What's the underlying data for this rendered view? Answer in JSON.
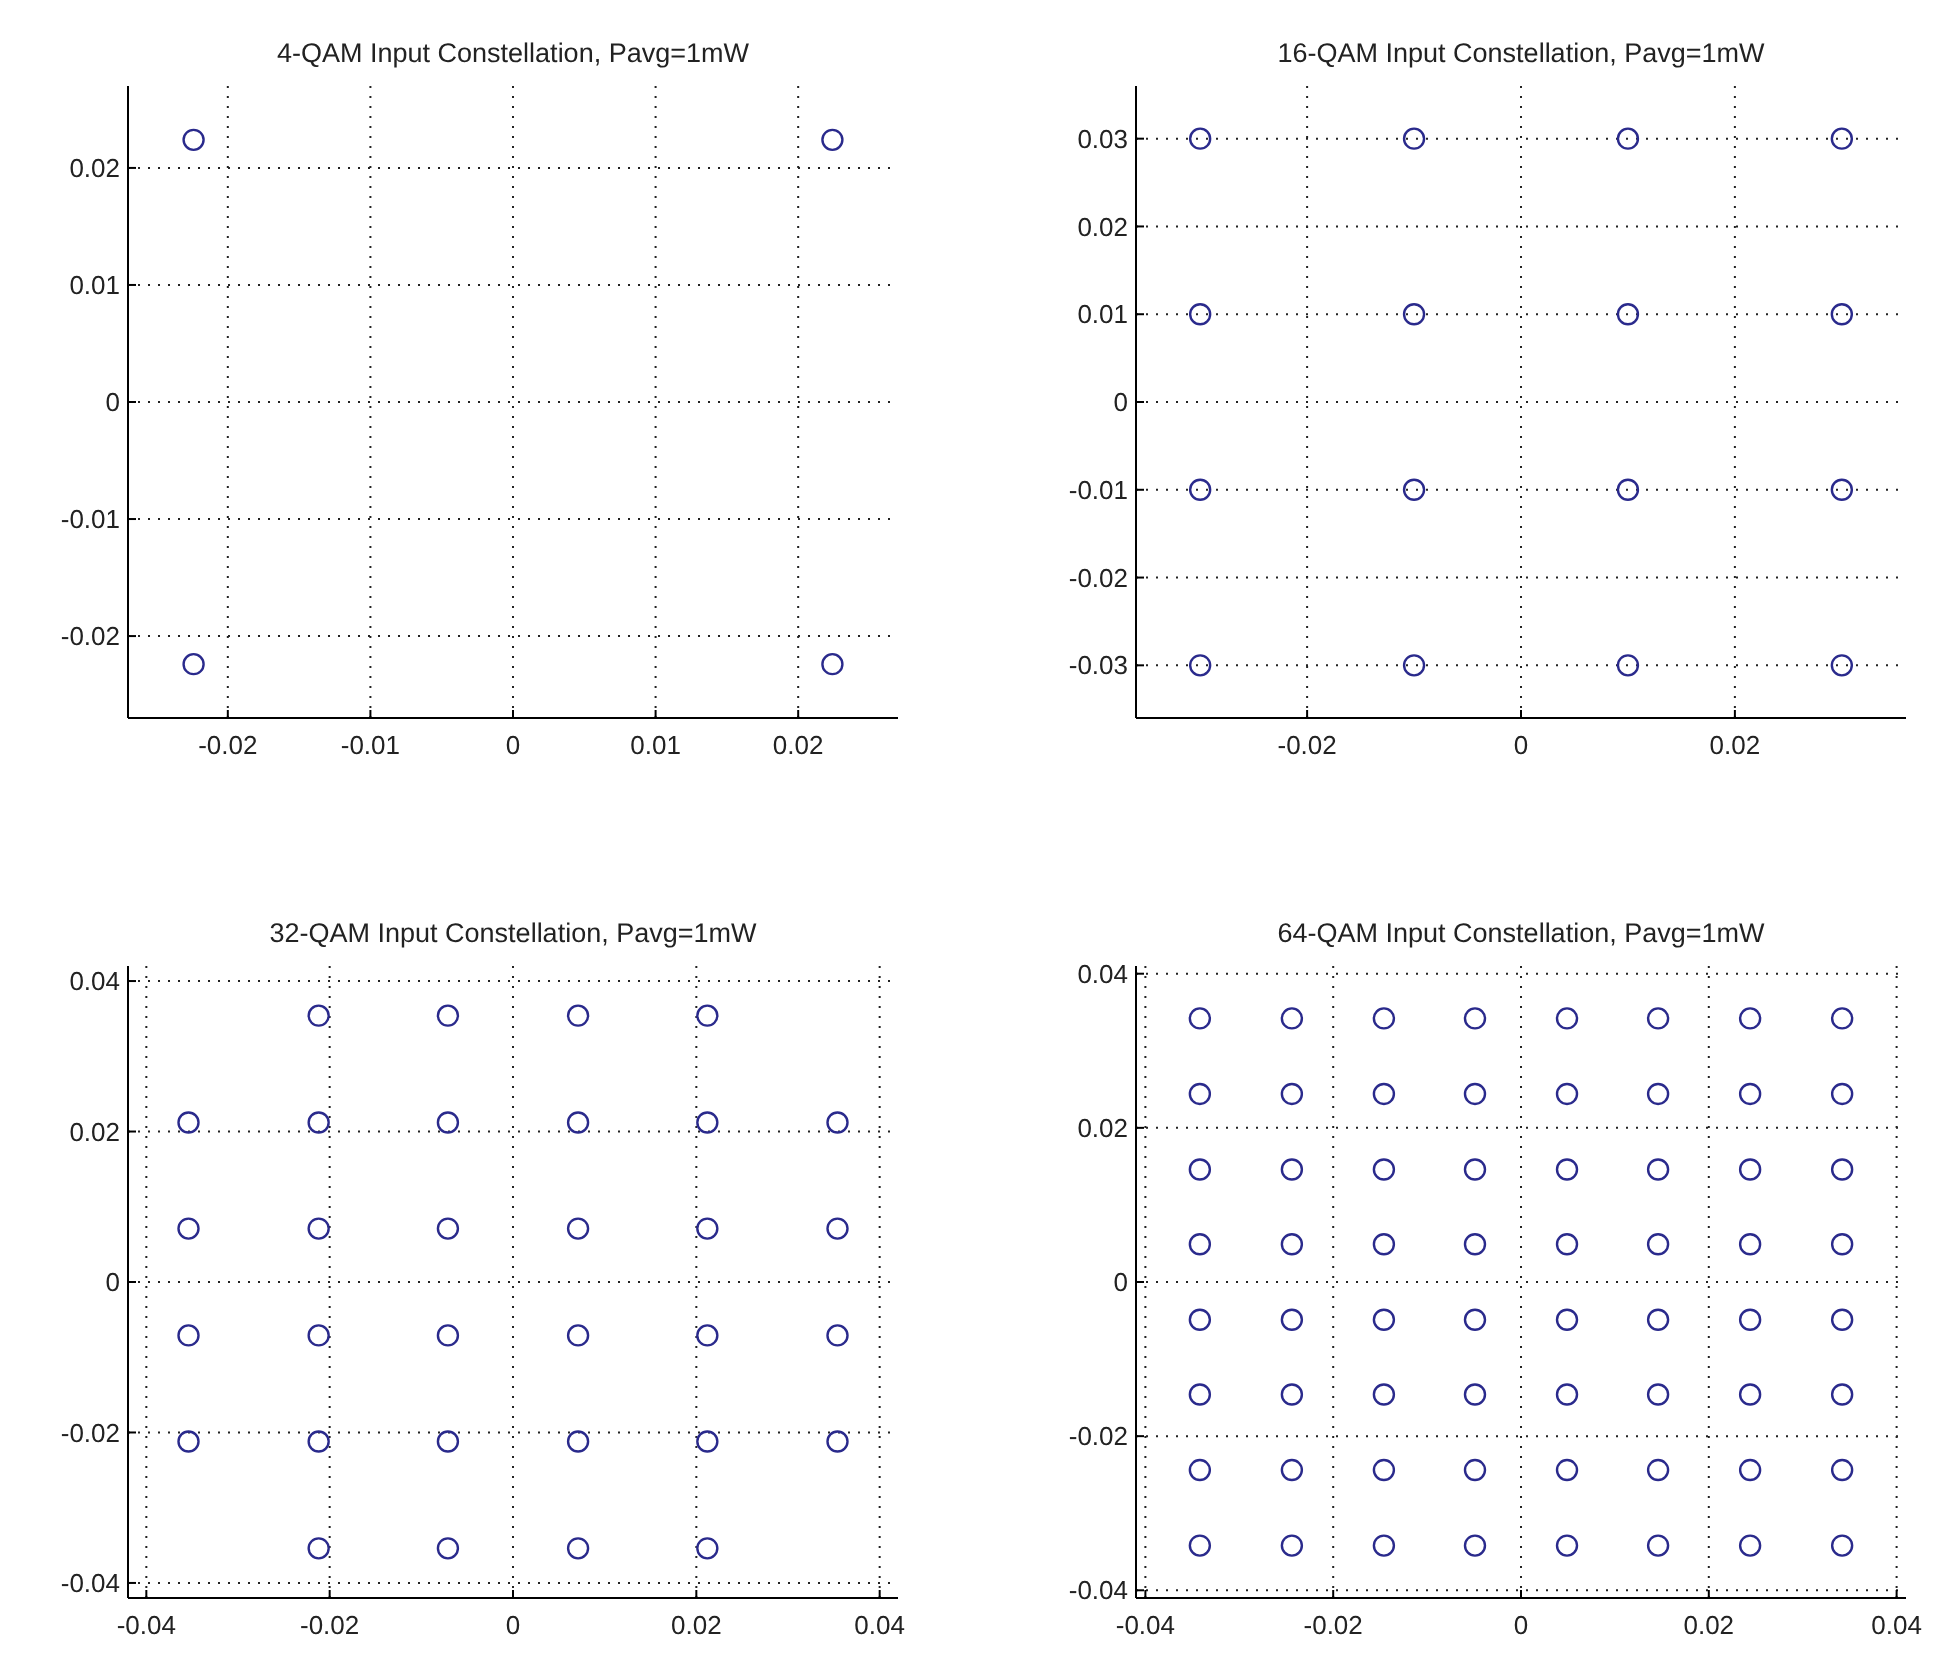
{
  "chart_data": [
    {
      "type": "scatter",
      "title": "4-QAM Input Constellation, Pavg=1mW",
      "xlim": [
        -0.027,
        0.027
      ],
      "ylim": [
        -0.027,
        0.027
      ],
      "xticks": [
        -0.02,
        -0.01,
        0,
        0.01,
        0.02
      ],
      "yticks": [
        -0.02,
        -0.01,
        0,
        0.01,
        0.02
      ],
      "grid": true,
      "marker": "circle",
      "series": [
        {
          "color": "#2a2a8c",
          "x": [
            -0.0224,
            0.0224,
            -0.0224,
            0.0224
          ],
          "values": [
            0.0224,
            0.0224,
            -0.0224,
            -0.0224
          ]
        }
      ]
    },
    {
      "type": "scatter",
      "title": "16-QAM Input Constellation, Pavg=1mW",
      "xlim": [
        -0.036,
        0.036
      ],
      "ylim": [
        -0.036,
        0.036
      ],
      "xticks": [
        -0.02,
        0,
        0.02
      ],
      "yticks": [
        -0.03,
        -0.02,
        -0.01,
        0,
        0.01,
        0.02,
        0.03
      ],
      "grid": true,
      "marker": "circle",
      "series": [
        {
          "color": "#2a2a8c",
          "x": [
            -0.03,
            -0.01,
            0.01,
            0.03,
            -0.03,
            -0.01,
            0.01,
            0.03,
            -0.03,
            -0.01,
            0.01,
            0.03,
            -0.03,
            -0.01,
            0.01,
            0.03
          ],
          "values": [
            0.03,
            0.03,
            0.03,
            0.03,
            0.01,
            0.01,
            0.01,
            0.01,
            -0.01,
            -0.01,
            -0.01,
            -0.01,
            -0.03,
            -0.03,
            -0.03,
            -0.03
          ]
        }
      ]
    },
    {
      "type": "scatter",
      "title": "32-QAM Input Constellation, Pavg=1mW",
      "xlim": [
        -0.042,
        0.042
      ],
      "ylim": [
        -0.042,
        0.042
      ],
      "xticks": [
        -0.04,
        -0.02,
        0,
        0.02,
        0.04
      ],
      "yticks": [
        -0.04,
        -0.02,
        0,
        0.02,
        0.04
      ],
      "grid": true,
      "marker": "circle",
      "series": [
        {
          "color": "#2a2a8c",
          "x": [
            -0.0212,
            -0.0071,
            0.0071,
            0.0212,
            -0.0354,
            -0.0212,
            -0.0071,
            0.0071,
            0.0212,
            0.0354,
            -0.0354,
            -0.0212,
            -0.0071,
            0.0071,
            0.0212,
            0.0354,
            -0.0354,
            -0.0212,
            -0.0071,
            0.0071,
            0.0212,
            0.0354,
            -0.0354,
            -0.0212,
            -0.0071,
            0.0071,
            0.0212,
            0.0354,
            -0.0212,
            -0.0071,
            0.0071,
            0.0212
          ],
          "values": [
            0.0354,
            0.0354,
            0.0354,
            0.0354,
            0.0212,
            0.0212,
            0.0212,
            0.0212,
            0.0212,
            0.0212,
            0.0071,
            0.0071,
            0.0071,
            0.0071,
            0.0071,
            0.0071,
            -0.0071,
            -0.0071,
            -0.0071,
            -0.0071,
            -0.0071,
            -0.0071,
            -0.0212,
            -0.0212,
            -0.0212,
            -0.0212,
            -0.0212,
            -0.0212,
            -0.0354,
            -0.0354,
            -0.0354,
            -0.0354
          ]
        }
      ]
    },
    {
      "type": "scatter",
      "title": "64-QAM Input Constellation, Pavg=1mW",
      "xlim": [
        -0.041,
        0.041
      ],
      "ylim": [
        -0.041,
        0.041
      ],
      "xticks": [
        -0.04,
        -0.02,
        0,
        0.02,
        0.04
      ],
      "yticks": [
        -0.04,
        -0.02,
        0,
        0.02,
        0.04
      ],
      "grid": true,
      "marker": "circle",
      "series": [
        {
          "color": "#2a2a8c",
          "x": [
            -0.0342,
            -0.0244,
            -0.0146,
            -0.0049,
            0.0049,
            0.0146,
            0.0244,
            0.0342,
            -0.0342,
            -0.0244,
            -0.0146,
            -0.0049,
            0.0049,
            0.0146,
            0.0244,
            0.0342,
            -0.0342,
            -0.0244,
            -0.0146,
            -0.0049,
            0.0049,
            0.0146,
            0.0244,
            0.0342,
            -0.0342,
            -0.0244,
            -0.0146,
            -0.0049,
            0.0049,
            0.0146,
            0.0244,
            0.0342,
            -0.0342,
            -0.0244,
            -0.0146,
            -0.0049,
            0.0049,
            0.0146,
            0.0244,
            0.0342,
            -0.0342,
            -0.0244,
            -0.0146,
            -0.0049,
            0.0049,
            0.0146,
            0.0244,
            0.0342,
            -0.0342,
            -0.0244,
            -0.0146,
            -0.0049,
            0.0049,
            0.0146,
            0.0244,
            0.0342,
            -0.0342,
            -0.0244,
            -0.0146,
            -0.0049,
            0.0049,
            0.0146,
            0.0244,
            0.0342
          ],
          "values": [
            0.0342,
            0.0342,
            0.0342,
            0.0342,
            0.0342,
            0.0342,
            0.0342,
            0.0342,
            0.0244,
            0.0244,
            0.0244,
            0.0244,
            0.0244,
            0.0244,
            0.0244,
            0.0244,
            0.0146,
            0.0146,
            0.0146,
            0.0146,
            0.0146,
            0.0146,
            0.0146,
            0.0146,
            0.0049,
            0.0049,
            0.0049,
            0.0049,
            0.0049,
            0.0049,
            0.0049,
            0.0049,
            -0.0049,
            -0.0049,
            -0.0049,
            -0.0049,
            -0.0049,
            -0.0049,
            -0.0049,
            -0.0049,
            -0.0146,
            -0.0146,
            -0.0146,
            -0.0146,
            -0.0146,
            -0.0146,
            -0.0146,
            -0.0146,
            -0.0244,
            -0.0244,
            -0.0244,
            -0.0244,
            -0.0244,
            -0.0244,
            -0.0244,
            -0.0244,
            -0.0342,
            -0.0342,
            -0.0342,
            -0.0342,
            -0.0342,
            -0.0342,
            -0.0342,
            -0.0342
          ]
        }
      ]
    }
  ]
}
